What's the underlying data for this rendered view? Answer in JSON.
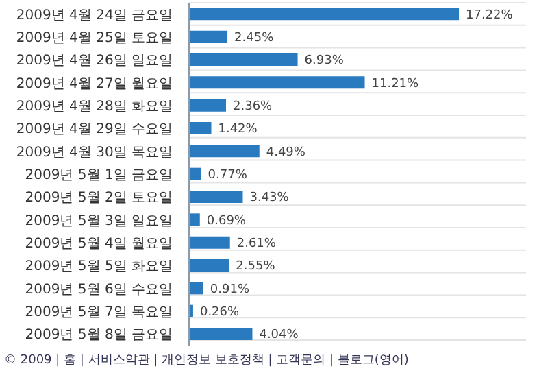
{
  "chart_data": {
    "type": "bar",
    "orientation": "horizontal",
    "categories": [
      "2009년 4월 24일 금요일",
      "2009년 4월 25일 토요일",
      "2009년 4월 26일 일요일",
      "2009년 4월 27일 월요일",
      "2009년 4월 28일 화요일",
      "2009년 4월 29일 수요일",
      "2009년 4월 30일 목요일",
      "2009년 5월 1일 금요일",
      "2009년 5월 2일 토요일",
      "2009년 5월 3일 일요일",
      "2009년 5월 4일 월요일",
      "2009년 5월 5일 화요일",
      "2009년 5월 6일 수요일",
      "2009년 5월 7일 목요일",
      "2009년 5월 8일 금요일"
    ],
    "values": [
      17.22,
      2.45,
      6.93,
      11.21,
      2.36,
      1.42,
      4.49,
      0.77,
      3.43,
      0.69,
      2.61,
      2.55,
      0.91,
      0.26,
      4.04
    ],
    "value_labels": [
      "17.22%",
      "2.45%",
      "6.93%",
      "11.21%",
      "2.36%",
      "1.42%",
      "4.49%",
      "0.77%",
      "3.43%",
      "0.69%",
      "2.61%",
      "2.55%",
      "0.91%",
      "0.26%",
      "4.04%"
    ],
    "color": "#2a7ac0",
    "xlim": [
      0,
      21.5
    ],
    "tick_labels": "y",
    "grid": "y",
    "annotations": [
      "© 2009 | 홈 | 서비스약관 | 개인정보 보호정책 | 고객문의 | 블로그(영어)"
    ]
  }
}
